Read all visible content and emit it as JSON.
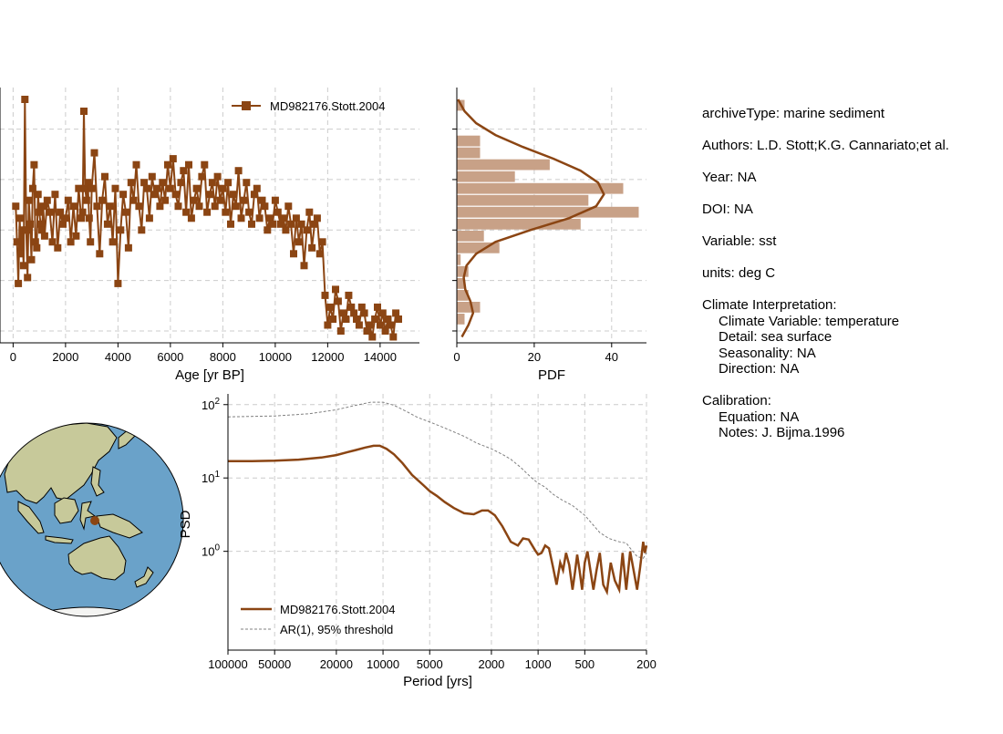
{
  "colors": {
    "series": "#8b4513",
    "hist_bar": "#c8a187",
    "ar1": "#808080",
    "grid": "#cccccc",
    "ocean": "#6aa2c9",
    "land": "#c7c99a"
  },
  "info": {
    "archive_type": "archiveType: marine sediment",
    "authors": "Authors: L.D. Stott;K.G. Cannariato;et al.",
    "year": "Year: NA",
    "doi": "DOI: NA",
    "variable": "Variable: sst",
    "units": "units: deg C",
    "climate_header": "Climate Interpretation:",
    "climate_variable": "Climate Variable: temperature",
    "climate_detail": "Detail: sea surface",
    "climate_seasonality": "Seasonality: NA",
    "climate_direction": "Direction: NA",
    "calibration_header": "Calibration:",
    "calibration_equation": "Equation: NA",
    "calibration_notes": "Notes: J. Bijma.1996"
  },
  "chart_data": [
    {
      "type": "line",
      "xlabel": "Age [yr BP]",
      "ylabel": "",
      "xlim": [
        -500,
        15500
      ],
      "ylim": [
        25.9,
        30.2
      ],
      "x_ticks": [
        0,
        2000,
        4000,
        6000,
        8000,
        10000,
        12000,
        14000
      ],
      "y_tick_values": [
        26.1,
        26.95,
        27.8,
        28.65,
        29.5
      ],
      "y_tick_labels_visible": false,
      "grid": true,
      "legend": {
        "placement": "top-right",
        "labels": [
          "MD982176.Stott.2004"
        ]
      },
      "marker": "square",
      "series": [
        {
          "name": "MD982176.Stott.2004",
          "x": [
            100,
            150,
            200,
            250,
            300,
            350,
            400,
            450,
            500,
            550,
            600,
            650,
            700,
            750,
            800,
            850,
            900,
            950,
            1000,
            1050,
            1100,
            1150,
            1200,
            1300,
            1400,
            1500,
            1600,
            1700,
            1800,
            1900,
            2000,
            2100,
            2200,
            2300,
            2400,
            2500,
            2600,
            2650,
            2700,
            2750,
            2800,
            2850,
            2900,
            2950,
            3000,
            3100,
            3200,
            3300,
            3400,
            3500,
            3600,
            3700,
            3800,
            3900,
            4000,
            4100,
            4200,
            4300,
            4400,
            4500,
            4600,
            4700,
            4800,
            4900,
            5000,
            5100,
            5200,
            5300,
            5400,
            5500,
            5600,
            5700,
            5800,
            5900,
            6000,
            6100,
            6200,
            6300,
            6400,
            6500,
            6600,
            6700,
            6800,
            6900,
            7000,
            7100,
            7200,
            7300,
            7400,
            7500,
            7600,
            7700,
            7800,
            7900,
            8000,
            8100,
            8200,
            8300,
            8400,
            8500,
            8600,
            8700,
            8800,
            8900,
            9000,
            9100,
            9200,
            9300,
            9400,
            9500,
            9600,
            9700,
            9800,
            9900,
            10000,
            10100,
            10200,
            10300,
            10400,
            10500,
            10600,
            10700,
            10800,
            10900,
            11000,
            11100,
            11200,
            11300,
            11400,
            11500,
            11600,
            11700,
            11800,
            11900,
            12000,
            12100,
            12200,
            12300,
            12400,
            12500,
            12600,
            12700,
            12800,
            12900,
            13000,
            13100,
            13200,
            13300,
            13400,
            13500,
            13600,
            13700,
            13800,
            13900,
            14000,
            14100,
            14200,
            14300,
            14400,
            14500,
            14600,
            14700
          ],
          "y": [
            28.2,
            27.6,
            26.9,
            28.0,
            27.4,
            27.8,
            27.2,
            30.0,
            27.8,
            27.0,
            28.3,
            27.9,
            27.3,
            28.5,
            28.9,
            27.6,
            27.5,
            28.4,
            28.1,
            27.9,
            27.8,
            28.2,
            27.7,
            28.3,
            28.1,
            27.6,
            28.4,
            27.5,
            28.1,
            27.9,
            28.0,
            28.3,
            27.6,
            28.2,
            27.7,
            28.5,
            28.0,
            28.1,
            29.8,
            28.5,
            28.3,
            28.6,
            28.0,
            27.6,
            28.5,
            29.1,
            28.2,
            27.4,
            28.3,
            28.7,
            27.9,
            28.2,
            27.6,
            28.5,
            26.9,
            27.8,
            28.4,
            28.1,
            27.5,
            28.6,
            28.3,
            28.9,
            28.2,
            27.8,
            28.6,
            28.5,
            28.0,
            28.7,
            28.4,
            28.5,
            28.2,
            28.6,
            28.3,
            28.9,
            28.5,
            29.0,
            28.4,
            28.2,
            28.6,
            28.8,
            28.1,
            28.9,
            28.0,
            28.3,
            28.5,
            28.2,
            28.7,
            28.9,
            28.1,
            28.4,
            28.6,
            28.2,
            28.7,
            28.3,
            28.5,
            28.1,
            28.6,
            27.9,
            28.4,
            28.2,
            28.8,
            28.0,
            28.3,
            28.6,
            28.1,
            27.9,
            28.4,
            28.5,
            28.0,
            28.3,
            28.2,
            27.8,
            28.0,
            27.9,
            28.3,
            28.1,
            27.9,
            28.0,
            27.8,
            28.2,
            27.9,
            27.4,
            28.0,
            27.6,
            27.9,
            27.2,
            27.8,
            28.1,
            27.5,
            27.9,
            28.0,
            27.4,
            27.6,
            26.7,
            26.2,
            26.5,
            26.3,
            26.8,
            26.6,
            26.1,
            26.4,
            26.3,
            26.7,
            26.5,
            26.4,
            26.3,
            26.2,
            26.5,
            26.4,
            26.1,
            26.2,
            26.0,
            26.3,
            26.5,
            26.2,
            26.4,
            26.1,
            26.3,
            26.2,
            26.0,
            26.4,
            26.3
          ]
        }
      ]
    },
    {
      "type": "bar",
      "orientation": "horizontal",
      "xlabel": "PDF",
      "xlim": [
        0,
        49
      ],
      "x_ticks": [
        0,
        20,
        40
      ],
      "bin_count": 21,
      "bin_height": 0.2,
      "bin_centers": [
        29.9,
        29.7,
        29.5,
        29.3,
        29.1,
        28.9,
        28.7,
        28.5,
        28.3,
        28.1,
        27.9,
        27.7,
        27.5,
        27.3,
        27.1,
        26.9,
        26.7,
        26.5,
        26.3,
        26.1,
        25.95
      ],
      "values": [
        2,
        0,
        0,
        6,
        6,
        24,
        15,
        43,
        34,
        47,
        32,
        7,
        11,
        1,
        3,
        2,
        3,
        6,
        2,
        0,
        0
      ],
      "kde": {
        "y": [
          30.0,
          29.8,
          29.6,
          29.4,
          29.2,
          29.0,
          28.8,
          28.6,
          28.4,
          28.2,
          28.0,
          27.8,
          27.6,
          27.4,
          27.2,
          27.0,
          26.8,
          26.6,
          26.4,
          26.2,
          26.0
        ],
        "x": [
          0.3,
          2,
          5,
          10,
          17,
          25,
          32,
          36.5,
          38,
          36,
          29,
          19,
          10,
          5,
          2.5,
          1.8,
          2.2,
          3.5,
          4.2,
          3,
          1.3
        ]
      }
    },
    {
      "type": "line",
      "xlabel": "Period [yrs]",
      "ylabel": "PSD",
      "x_scale": "log",
      "y_scale": "log",
      "x_inverted": true,
      "xlim": [
        100000,
        200
      ],
      "ylim": [
        0.045,
        140
      ],
      "x_ticks": [
        100000,
        50000,
        20000,
        10000,
        5000,
        2000,
        1000,
        500,
        200
      ],
      "y_ticks": [
        1,
        10,
        100
      ],
      "y_tick_labels": [
        "10",
        "10",
        "10"
      ],
      "y_tick_exponents": [
        "0",
        "1",
        "2"
      ],
      "grid": true,
      "legend": {
        "placement": "lower-left",
        "labels": [
          "MD982176.Stott.2004",
          "AR(1), 95% threshold"
        ]
      },
      "series": [
        {
          "name": "MD982176.Stott.2004",
          "x": [
            100000,
            70000,
            50000,
            35000,
            25000,
            20000,
            17000,
            15000,
            13000,
            11500,
            10500,
            9500,
            8500,
            7500,
            6500,
            5500,
            5000,
            4500,
            4000,
            3500,
            3000,
            2600,
            2300,
            2100,
            1900,
            1700,
            1500,
            1350,
            1250,
            1150,
            1050,
            1000,
            950,
            900,
            850,
            800,
            760,
            720,
            690,
            660,
            630,
            600,
            580,
            560,
            540,
            520,
            500,
            480,
            460,
            440,
            420,
            400,
            380,
            360,
            340,
            320,
            300,
            285,
            270,
            255,
            240,
            230,
            220,
            210,
            205,
            200
          ],
          "y": [
            17,
            17,
            17.2,
            17.8,
            19,
            20.5,
            22.5,
            24,
            26,
            27.5,
            27.5,
            25,
            21,
            16,
            11,
            8,
            6.6,
            5.7,
            4.7,
            3.9,
            3.3,
            3.2,
            3.6,
            3.6,
            3.1,
            2.2,
            1.35,
            1.2,
            1.5,
            1.45,
            1.05,
            0.9,
            0.95,
            1.2,
            1.1,
            0.6,
            0.35,
            0.7,
            0.55,
            0.95,
            0.65,
            0.3,
            0.5,
            0.9,
            0.55,
            0.3,
            0.7,
            1.0,
            0.55,
            0.3,
            0.55,
            0.95,
            0.35,
            0.28,
            0.7,
            0.4,
            0.3,
            0.95,
            0.3,
            1.0,
            0.5,
            0.3,
            0.6,
            1.35,
            0.95,
            1.2
          ]
        },
        {
          "name": "AR(1), 95% threshold",
          "x": [
            100000,
            50000,
            30000,
            20000,
            15000,
            12000,
            10000,
            8500,
            7000,
            6000,
            5000,
            4000,
            3000,
            2500,
            2000,
            1700,
            1500,
            1300,
            1100,
            1000,
            900,
            800,
            700,
            600,
            500,
            450,
            400,
            350,
            300,
            270,
            250,
            230,
            210,
            200
          ],
          "y": [
            68,
            70,
            75,
            85,
            98,
            108,
            108,
            98,
            80,
            67,
            58,
            48,
            37,
            30,
            25,
            21,
            18,
            14,
            10,
            8.5,
            7.5,
            6,
            5,
            4.2,
            3.1,
            2.4,
            1.8,
            1.5,
            1.35,
            1.3,
            1.05,
            0.85,
            0.8,
            0.95
          ]
        }
      ]
    },
    {
      "type": "map",
      "projection": "orthographic",
      "center": "Indo-Pacific (Maritime Continent)",
      "marker": "circle"
    }
  ]
}
